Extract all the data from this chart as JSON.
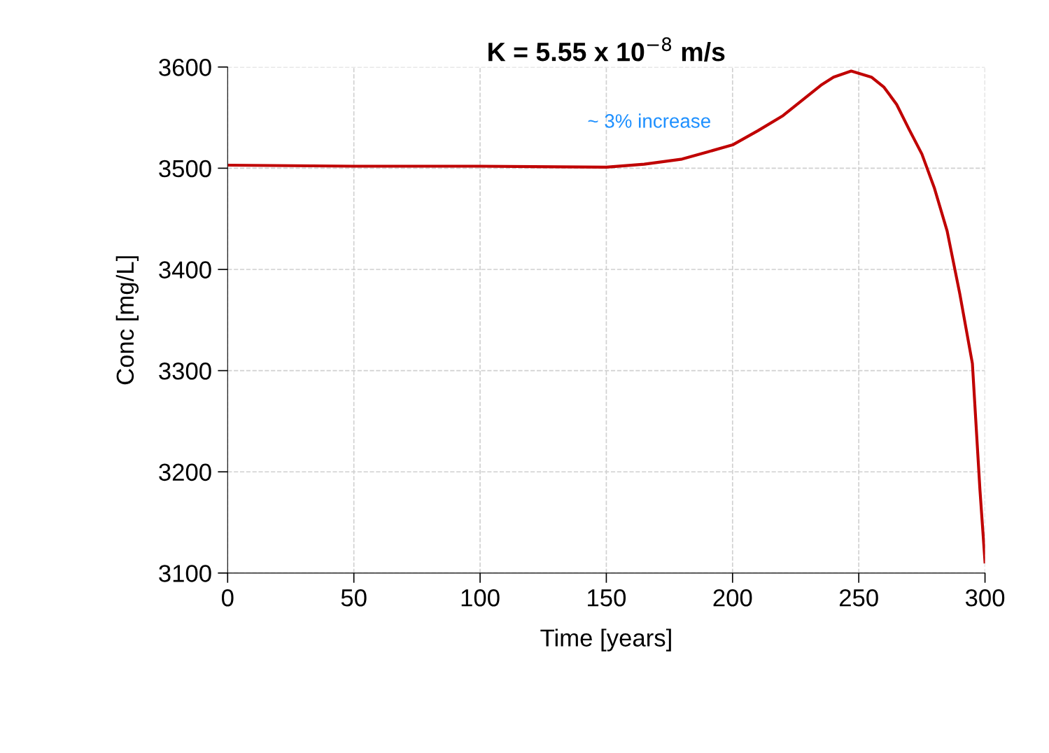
{
  "chart_data": {
    "type": "line",
    "title": "K = 5.55 x 10$^{−8}$ m/s",
    "xlabel": "Time [years]",
    "ylabel": "Conc [mg/L]",
    "annotations": [
      "~ 3% increase"
    ],
    "x": [
      0,
      50,
      100,
      150,
      165,
      180,
      190,
      200,
      210,
      220,
      235,
      240,
      247,
      255,
      260,
      265,
      270,
      275,
      280,
      285,
      290,
      295,
      298,
      300
    ],
    "series": [
      {
        "color": "#c00000",
        "values": [
          3503,
          3502,
          3502,
          3501,
          3504,
          3509,
          3516,
          3523,
          3537,
          3552,
          3582,
          3590,
          3596,
          3590,
          3580,
          3563,
          3538,
          3514,
          3480,
          3438,
          3376,
          3307,
          3182,
          3111
        ]
      }
    ],
    "xlim": [
      0,
      300
    ],
    "ylim": [
      3100,
      3600
    ],
    "xticks": [
      0,
      50,
      100,
      150,
      200,
      250,
      300
    ],
    "yticks": [
      3100,
      3200,
      3300,
      3400,
      3500,
      3600
    ],
    "grid": true,
    "marker": "none",
    "line_style": "solid"
  }
}
